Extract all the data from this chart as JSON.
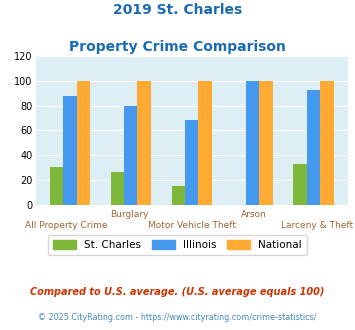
{
  "title_line1": "2019 St. Charles",
  "title_line2": "Property Crime Comparison",
  "st_charles": [
    30,
    26,
    15,
    0,
    33
  ],
  "illinois": [
    88,
    80,
    68,
    100,
    93
  ],
  "national": [
    100,
    100,
    100,
    100,
    100
  ],
  "color_stcharles": "#7db83a",
  "color_illinois": "#4499ee",
  "color_national": "#ffaa33",
  "ylim": [
    0,
    120
  ],
  "yticks": [
    0,
    20,
    40,
    60,
    80,
    100,
    120
  ],
  "legend_labels": [
    "St. Charles",
    "Illinois",
    "National"
  ],
  "footnote1": "Compared to U.S. average. (U.S. average equals 100)",
  "footnote2": "© 2025 CityRating.com - https://www.cityrating.com/crime-statistics/",
  "bg_color": "#ddeef5",
  "title_color": "#1a6bb5",
  "footnote1_color": "#cc3300",
  "footnote2_color": "#4488bb"
}
